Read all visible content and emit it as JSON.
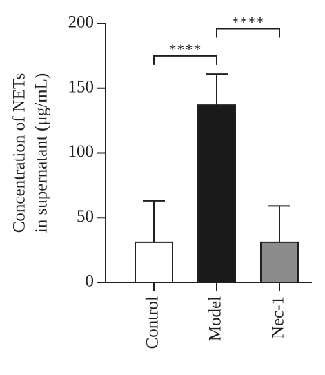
{
  "chart_data": {
    "type": "bar",
    "ylabel": [
      "Concentration of NETs",
      "in supernatant (μg/mL)"
    ],
    "ylim": [
      0,
      200
    ],
    "yticks": [
      0,
      50,
      100,
      150,
      200
    ],
    "categories": [
      "Control",
      "Model",
      "Nec-1"
    ],
    "values": [
      31,
      137,
      31
    ],
    "errors": [
      32,
      24,
      28
    ],
    "bar_colors": [
      "#ffffff",
      "#1a1a1a",
      "#8c8c8c"
    ],
    "edge_color": "#231f20",
    "significance": [
      {
        "from": 0,
        "to": 1,
        "label": "****",
        "y": 175
      },
      {
        "from": 1,
        "to": 2,
        "label": "****",
        "y": 196
      }
    ]
  }
}
